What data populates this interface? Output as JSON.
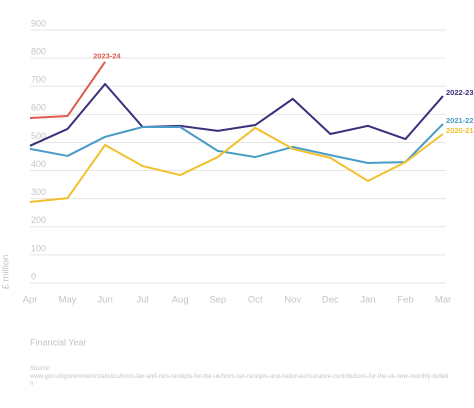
{
  "chart_data": {
    "type": "line",
    "y_label": "£ million",
    "x_label": "Financial Year",
    "source_title": "Source:",
    "source": "www.gov.uk/government/statistics/hmrc-tax-and-nics-receipts-for-the-uk/hmrc-tax-receipts-and-national-insurance-contributions-for-the-uk-new-monthly-bulletin",
    "categories": [
      "Apr",
      "May",
      "Jun",
      "Jul",
      "Aug",
      "Sep",
      "Oct",
      "Nov",
      "Dec",
      "Jan",
      "Feb",
      "Mar"
    ],
    "series": [
      {
        "name": "2023-24",
        "color": "#e05a4f",
        "values": [
          587,
          594,
          787,
          null,
          null,
          null,
          null,
          null,
          null,
          null,
          null,
          null
        ]
      },
      {
        "name": "2022-23",
        "color": "#3d2f7c",
        "values": [
          488,
          548,
          708,
          555,
          559,
          541,
          562,
          655,
          530,
          559,
          512,
          665
        ]
      },
      {
        "name": "2021-22",
        "color": "#4a9cc7",
        "values": [
          477,
          452,
          520,
          555,
          555,
          470,
          448,
          484,
          455,
          427,
          430,
          566
        ]
      },
      {
        "name": "2020-21",
        "color": "#f2c02c",
        "values": [
          288,
          302,
          491,
          416,
          384,
          448,
          552,
          477,
          445,
          363,
          430,
          530
        ]
      }
    ],
    "ylim": [
      0,
      900
    ],
    "yticks": [
      0,
      100,
      200,
      300,
      400,
      500,
      600,
      700,
      800,
      900
    ],
    "grid": true
  }
}
